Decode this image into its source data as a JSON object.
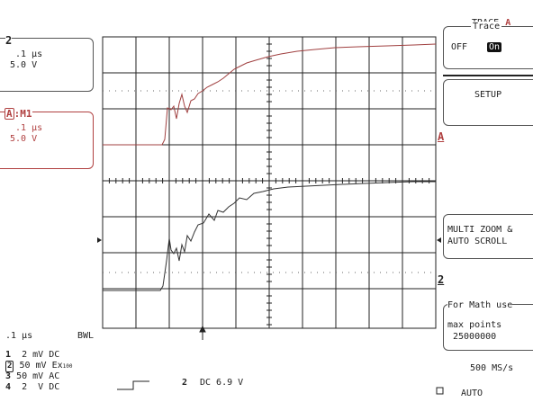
{
  "trace_menu": {
    "title_prefix": "TRACE",
    "title_letter": "A",
    "group_label": "Trace",
    "off_label": "OFF",
    "on_label": "On"
  },
  "setup_button": "SETUP",
  "multi_zoom": {
    "line1": "MULTI ZOOM &",
    "line2": "AUTO SCROLL"
  },
  "math_box": {
    "line1": "For Math use",
    "line2": "max points",
    "line3": "25000000"
  },
  "sample_rate": "500 MS/s",
  "auto_label": "AUTO",
  "ch2_box": {
    "label": "2",
    "timebase": ".1 μs",
    "volts": "5.0 V"
  },
  "a_box": {
    "label_letter": "A",
    "label_rest": ":M1",
    "timebase": ".1 μs",
    "volts": "5.0 V"
  },
  "trace_markers": {
    "a": "A",
    "ch2": "2"
  },
  "bottom": {
    "timebase": ".1 μs",
    "bwl": "BWL",
    "channels": [
      {
        "num": "1",
        "volts": "2 mV",
        "coupling": "DC"
      },
      {
        "num": "2",
        "volts": "50 mV",
        "coupling": "Ex",
        "probe": "100"
      },
      {
        "num": "3",
        "volts": "50 mV",
        "coupling": "AC"
      },
      {
        "num": "4",
        "volts": "2  V",
        "coupling": "DC"
      }
    ],
    "trigger_channel": "2",
    "trigger_info": "DC 6.9 V"
  },
  "colors": {
    "trace_a": "#a04040",
    "trace_2": "#333333",
    "grid": "#222222"
  }
}
